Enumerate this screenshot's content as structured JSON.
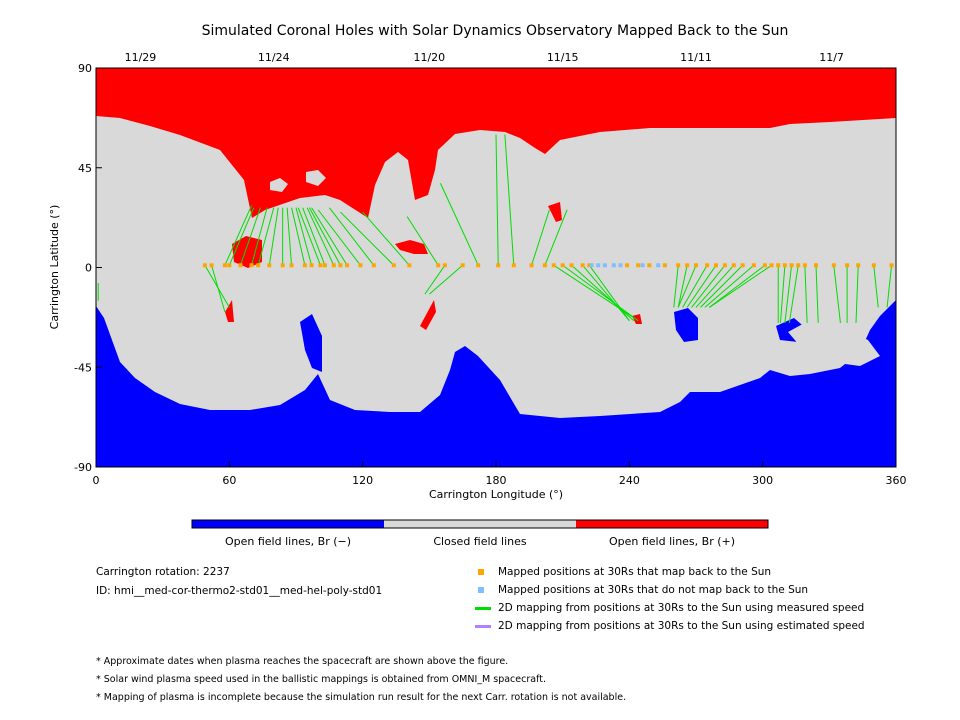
{
  "chart_data": {
    "type": "map",
    "title": "Simulated Coronal Holes with Solar Dynamics Observatory Mapped Back to the Sun",
    "xlabel": "Carrington Longitude (°)",
    "ylabel": "Carrington Latitude (°)",
    "xlim": [
      0,
      360
    ],
    "ylim": [
      -90,
      90
    ],
    "xticks": [
      0,
      60,
      120,
      180,
      240,
      300,
      360
    ],
    "yticks": [
      -90,
      -45,
      0,
      45,
      90
    ],
    "date_ticks": [
      {
        "label": "11/29",
        "lon": 20
      },
      {
        "label": "11/24",
        "lon": 80
      },
      {
        "label": "11/20",
        "lon": 150
      },
      {
        "label": "11/15",
        "lon": 210
      },
      {
        "label": "11/11",
        "lon": 270
      },
      {
        "label": "11/7",
        "lon": 331
      }
    ],
    "colorbar": [
      {
        "label": "Open field lines, Br (−)",
        "color": "#0000ff"
      },
      {
        "label": "Closed field lines",
        "color": "#d9d9d9"
      },
      {
        "label": "Open field lines, Br (+)",
        "color": "#ff0000"
      }
    ],
    "mapped_orange": [
      [
        49,
        1
      ],
      [
        52,
        1
      ],
      [
        58,
        1
      ],
      [
        60,
        1
      ],
      [
        65,
        1
      ],
      [
        70,
        1
      ],
      [
        73,
        1
      ],
      [
        78,
        1
      ],
      [
        84,
        1
      ],
      [
        88,
        1
      ],
      [
        94,
        1
      ],
      [
        97,
        1
      ],
      [
        101,
        1
      ],
      [
        103,
        1
      ],
      [
        107,
        1
      ],
      [
        110,
        1
      ],
      [
        113,
        1
      ],
      [
        119,
        1
      ],
      [
        125,
        1
      ],
      [
        134,
        1
      ],
      [
        141,
        1
      ],
      [
        154,
        1
      ],
      [
        157,
        1
      ],
      [
        165,
        1
      ],
      [
        172,
        1
      ],
      [
        181,
        1
      ],
      [
        188,
        1
      ],
      [
        196,
        1
      ],
      [
        202,
        1
      ],
      [
        206,
        1
      ],
      [
        210,
        1
      ],
      [
        214,
        1
      ],
      [
        219,
        1
      ],
      [
        222,
        1
      ],
      [
        239,
        1
      ],
      [
        244,
        1
      ],
      [
        249,
        1
      ],
      [
        256,
        1
      ],
      [
        262,
        1
      ],
      [
        266,
        1
      ],
      [
        270,
        1
      ],
      [
        275,
        1
      ],
      [
        279,
        1
      ],
      [
        283,
        1
      ],
      [
        287,
        1
      ],
      [
        291,
        1
      ],
      [
        296,
        1
      ],
      [
        301,
        1
      ],
      [
        304,
        1
      ],
      [
        307,
        1
      ],
      [
        310,
        1
      ],
      [
        313,
        1
      ],
      [
        316,
        1
      ],
      [
        319,
        1
      ],
      [
        324,
        1
      ],
      [
        332,
        1
      ],
      [
        338,
        1
      ],
      [
        343,
        1
      ],
      [
        350,
        1
      ],
      [
        358,
        1
      ]
    ],
    "unmapped_blue": [
      [
        223,
        1
      ],
      [
        226,
        1
      ],
      [
        229,
        1
      ],
      [
        233,
        1
      ],
      [
        236,
        1
      ],
      [
        246,
        1
      ],
      [
        253,
        1
      ]
    ],
    "measured_lines": [
      [
        49,
        1,
        60,
        -18
      ],
      [
        52,
        1,
        58,
        -20
      ],
      [
        58,
        1,
        70,
        28
      ],
      [
        60,
        1,
        71,
        27
      ],
      [
        65,
        1,
        74,
        27
      ],
      [
        70,
        1,
        77,
        27
      ],
      [
        73,
        1,
        80,
        27
      ],
      [
        78,
        1,
        82,
        27
      ],
      [
        84,
        1,
        84,
        27
      ],
      [
        88,
        1,
        86,
        27
      ],
      [
        94,
        1,
        88,
        27
      ],
      [
        97,
        1,
        90,
        27
      ],
      [
        101,
        1,
        91,
        27
      ],
      [
        103,
        1,
        93,
        27
      ],
      [
        107,
        1,
        95,
        27
      ],
      [
        110,
        1,
        96,
        27
      ],
      [
        113,
        1,
        97,
        27
      ],
      [
        119,
        1,
        100,
        26
      ],
      [
        125,
        1,
        105,
        27
      ],
      [
        134,
        1,
        110,
        25
      ],
      [
        141,
        1,
        120,
        25
      ],
      [
        154,
        1,
        140,
        23
      ],
      [
        157,
        1,
        148,
        -12
      ],
      [
        165,
        1,
        150,
        -12
      ],
      [
        172,
        1,
        155,
        38
      ],
      [
        181,
        1,
        180,
        60
      ],
      [
        188,
        1,
        184,
        60
      ],
      [
        196,
        1,
        204,
        26
      ],
      [
        202,
        1,
        212,
        26
      ],
      [
        206,
        1,
        244,
        -24
      ],
      [
        210,
        1,
        244,
        -24
      ],
      [
        214,
        1,
        242,
        -24
      ],
      [
        219,
        1,
        240,
        -24
      ],
      [
        222,
        1,
        240,
        -24
      ],
      [
        262,
        1,
        260,
        -18
      ],
      [
        266,
        1,
        262,
        -18
      ],
      [
        270,
        1,
        262,
        -18
      ],
      [
        275,
        1,
        264,
        -18
      ],
      [
        279,
        1,
        266,
        -18
      ],
      [
        283,
        1,
        268,
        -18
      ],
      [
        287,
        1,
        270,
        -18
      ],
      [
        291,
        1,
        272,
        -18
      ],
      [
        296,
        1,
        274,
        -18
      ],
      [
        301,
        1,
        276,
        -18
      ],
      [
        304,
        1,
        276,
        -18
      ],
      [
        307,
        1,
        307,
        -25
      ],
      [
        310,
        1,
        308,
        -25
      ],
      [
        313,
        1,
        310,
        -25
      ],
      [
        316,
        1,
        312,
        -25
      ],
      [
        319,
        1,
        320,
        -25
      ],
      [
        324,
        1,
        325,
        -25
      ],
      [
        332,
        1,
        335,
        -25
      ],
      [
        338,
        1,
        338,
        -25
      ],
      [
        343,
        1,
        342,
        -25
      ],
      [
        350,
        1,
        352,
        -18
      ],
      [
        358,
        1,
        356,
        -18
      ],
      [
        1,
        -7,
        1,
        -15
      ]
    ],
    "estimated_lines": []
  },
  "info": {
    "rotation": "Carrington rotation: 2237",
    "id": "ID: hmi__med-cor-thermo2-std01__med-hel-poly-std01"
  },
  "legend": [
    {
      "label": "Mapped positions at 30Rs that map back to the Sun",
      "color": "#ffa500"
    },
    {
      "label": "Mapped positions at 30Rs that do not map back to the Sun",
      "color": "#7fbfff"
    },
    {
      "label": "2D mapping from positions at 30Rs to the Sun using measured speed",
      "color": "#00dd00"
    },
    {
      "label": "2D mapping from positions at 30Rs to the Sun using estimated speed",
      "color": "#b080ff"
    }
  ],
  "notes": [
    "* Approximate dates when plasma reaches the spacecraft are shown above the figure.",
    "* Solar wind plasma speed used in the ballistic mappings is obtained from OMNI_M spacecraft.",
    "* Mapping of plasma is incomplete because the simulation run result for the next Carr. rotation is not available."
  ]
}
